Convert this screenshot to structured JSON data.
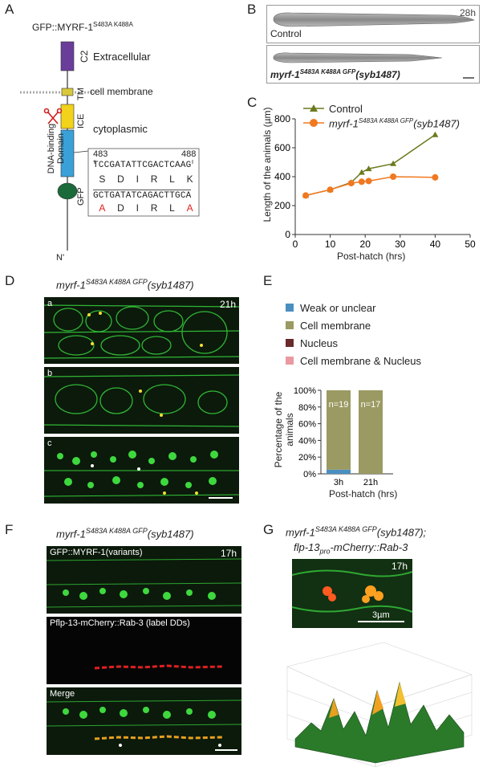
{
  "panels": {
    "A": {
      "label": "A",
      "title_main": "GFP::MYRF-1",
      "title_sup": "S483A K488A",
      "domains": {
        "c2": "C2",
        "tm": "TM",
        "ice": "ICE",
        "dna": "DNA-binding Domain",
        "gfp": "GFP"
      },
      "regions": {
        "extracellular": "Extracellular",
        "membrane": "cell membrane",
        "cytoplasmic": "cytoplasmic"
      },
      "terminus": "N'",
      "seq": {
        "start": "483",
        "end": "488",
        "wt_dna": "TCCGATATTCGACTCAAG",
        "wt_aa": [
          "S",
          "D",
          "I",
          "R",
          "L",
          "K"
        ],
        "mut_dna": "GCTGATATCAGACTTGCA",
        "mut_aa": [
          "A",
          "D",
          "I",
          "R",
          "L",
          "A"
        ],
        "mut_color": "#e02020"
      }
    },
    "B": {
      "label": "B",
      "time": "28h",
      "control": "Control",
      "mutant_main": "myrf-1",
      "mutant_sup": "S483A K488A GFP",
      "mutant_allele": "(syb1487)"
    },
    "C": {
      "label": "C",
      "legend_control": "Control",
      "legend_mut_main": "myrf-1",
      "legend_mut_sup": "S483A K488A GFP",
      "legend_mut_allele": "(syb1487)",
      "ylabel": "Length of the animals (µm)",
      "xlabel": "Post-hatch (hrs)"
    },
    "D": {
      "label": "D",
      "title_main": "myrf-1",
      "title_sup": "S483A K488A GFP",
      "title_allele": "(syb1487)",
      "time": "21h",
      "sub_a": "a",
      "sub_b": "b",
      "sub_c": "c"
    },
    "E": {
      "label": "E",
      "legend": [
        {
          "label": "Weak or unclear",
          "color": "#4a8fc0"
        },
        {
          "label": "Cell membrane",
          "color": "#9a9a62"
        },
        {
          "label": "Nucleus",
          "color": "#6a2a2a"
        },
        {
          "label": "Cell membrane & Nucleus",
          "color": "#e89aa0"
        }
      ],
      "ylabel": "Percentage of the animals",
      "xlabel": "Post-hatch (hrs)"
    },
    "F": {
      "label": "F",
      "title_main": "myrf-1",
      "title_sup": "S483A K488A GFP",
      "title_allele": "(syb1487)",
      "time": "17h",
      "top_label": "GFP::MYRF-1(variants)",
      "mid_label": "Pflp-13-mCherry::Rab-3 (label DDs)",
      "bottom_label": "Merge"
    },
    "G": {
      "label": "G",
      "line1_main": "myrf-1",
      "line1_sup": "S483A K488A GFP",
      "line1_allele": "(syb1487);",
      "line2_a": "flp-13",
      "line2_sub": "pro",
      "line2_b": "-mCherry::Rab-3",
      "time": "17h",
      "scale": "3µm"
    }
  },
  "chart_data": [
    {
      "type": "line",
      "panel": "C",
      "xlabel": "Post-hatch (hrs)",
      "ylabel": "Length of the animals (µm)",
      "xlim": [
        0,
        50
      ],
      "ylim": [
        0,
        800
      ],
      "xticks": [
        0,
        10,
        20,
        30,
        40,
        50
      ],
      "yticks": [
        0,
        200,
        400,
        600,
        800
      ],
      "series": [
        {
          "name": "Control",
          "color": "#6b7a1e",
          "marker": "triangle",
          "x": [
            3,
            10,
            16,
            19,
            21,
            28,
            40
          ],
          "y": [
            270,
            310,
            360,
            430,
            455,
            490,
            690
          ]
        },
        {
          "name": "myrf-1 S483A K488A GFP (syb1487)",
          "color": "#f07820",
          "marker": "circle",
          "x": [
            3,
            10,
            16,
            19,
            21,
            28,
            40
          ],
          "y": [
            270,
            310,
            355,
            365,
            370,
            400,
            395
          ]
        }
      ]
    },
    {
      "type": "bar",
      "panel": "E",
      "stacked": true,
      "categories": [
        "3h",
        "21h"
      ],
      "ylim": [
        0,
        100
      ],
      "yticks": [
        "0%",
        "20%",
        "40%",
        "60%",
        "80%",
        "100%"
      ],
      "bar_labels": [
        "n=19",
        "n=17"
      ],
      "series": [
        {
          "name": "Weak or unclear",
          "values": [
            5,
            0
          ]
        },
        {
          "name": "Cell membrane",
          "values": [
            95,
            100
          ]
        },
        {
          "name": "Nucleus",
          "values": [
            0,
            0
          ]
        },
        {
          "name": "Cell membrane & Nucleus",
          "values": [
            0,
            0
          ]
        }
      ]
    }
  ]
}
